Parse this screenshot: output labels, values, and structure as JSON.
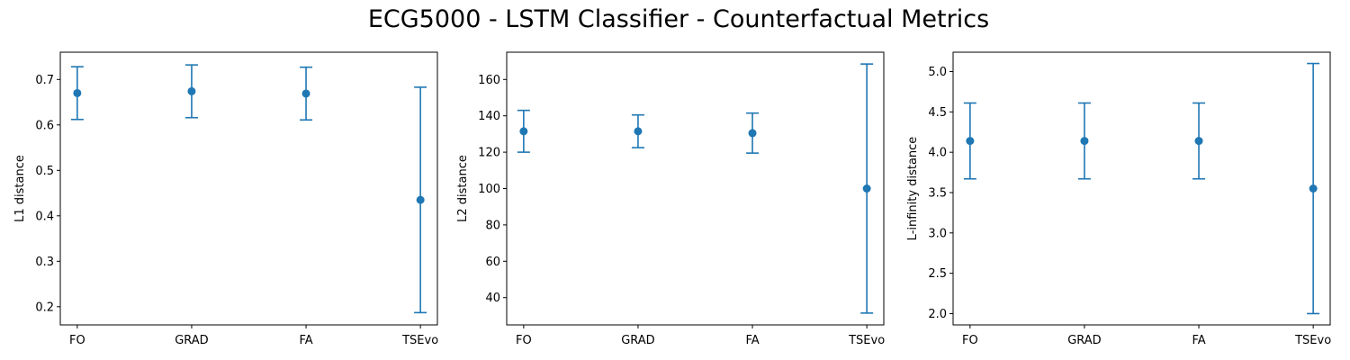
{
  "figure": {
    "title": "ECG5000 - LSTM Classifier - Counterfactual Metrics"
  },
  "colors": {
    "series": "#1f77b4",
    "axis": "#000000",
    "background": "#ffffff"
  },
  "chart_data": [
    {
      "type": "scatter",
      "ylabel": "L1 distance",
      "categories": [
        "FO",
        "GRAD",
        "FA",
        "TSEvo"
      ],
      "ylim": [
        0.16,
        0.76
      ],
      "yticks": [
        0.2,
        0.3,
        0.4,
        0.5,
        0.6,
        0.7
      ],
      "ytick_labels": [
        "0.2",
        "0.3",
        "0.4",
        "0.5",
        "0.6",
        "0.7"
      ],
      "series": [
        {
          "values": [
            0.67,
            0.674,
            0.669,
            0.435
          ],
          "error": [
            0.058,
            0.058,
            0.058,
            0.248
          ]
        }
      ]
    },
    {
      "type": "scatter",
      "ylabel": "L2 distance",
      "categories": [
        "FO",
        "GRAD",
        "FA",
        "TSEvo"
      ],
      "ylim": [
        25,
        175
      ],
      "yticks": [
        40,
        60,
        80,
        100,
        120,
        140,
        160
      ],
      "ytick_labels": [
        "40",
        "60",
        "80",
        "100",
        "120",
        "140",
        "160"
      ],
      "series": [
        {
          "values": [
            131.5,
            131.5,
            130.5,
            100.0
          ],
          "error": [
            11.5,
            9.0,
            11.0,
            68.5
          ]
        }
      ]
    },
    {
      "type": "scatter",
      "ylabel": "L-infinity distance",
      "categories": [
        "FO",
        "GRAD",
        "FA",
        "TSEvo"
      ],
      "ylim": [
        1.86,
        5.24
      ],
      "yticks": [
        2.0,
        2.5,
        3.0,
        3.5,
        4.0,
        4.5,
        5.0
      ],
      "ytick_labels": [
        "2.0",
        "2.5",
        "3.0",
        "3.5",
        "4.0",
        "4.5",
        "5.0"
      ],
      "series": [
        {
          "values": [
            4.14,
            4.14,
            4.14,
            3.55
          ],
          "error": [
            0.47,
            0.47,
            0.47,
            1.55
          ]
        }
      ]
    }
  ]
}
